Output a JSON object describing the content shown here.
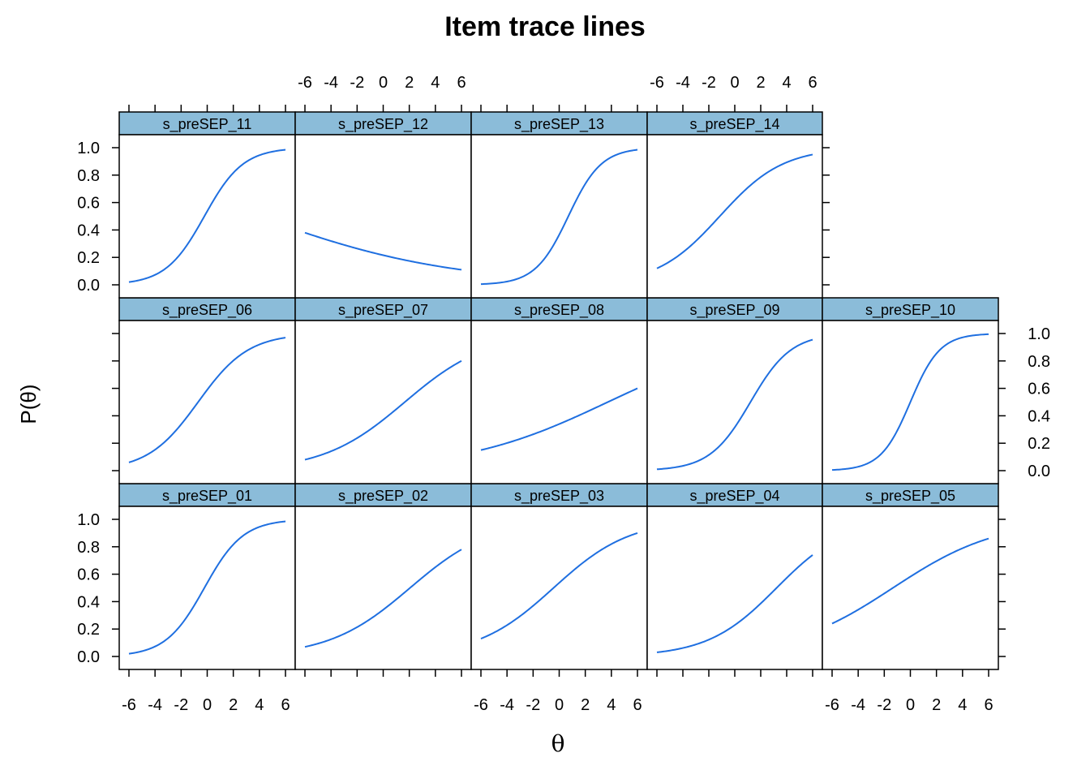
{
  "chart_data": {
    "type": "line",
    "title": "Item trace lines",
    "xlabel": "θ",
    "ylabel": "P(θ)",
    "xlim": [
      -6,
      6
    ],
    "ylim": [
      0,
      1
    ],
    "x_ticks": [
      "-6",
      "-4",
      "-2",
      "0",
      "2",
      "4",
      "6"
    ],
    "y_ticks": [
      "0.0",
      "0.2",
      "0.4",
      "0.6",
      "0.8",
      "1.0"
    ],
    "line_color": "#1f6fe0",
    "strip_color": "#8bbcd9",
    "panels": [
      {
        "name": "s_preSEP_01",
        "row": 0,
        "col": 0,
        "p_start": 0.02,
        "p_end": 0.985
      },
      {
        "name": "s_preSEP_02",
        "row": 0,
        "col": 1,
        "p_start": 0.07,
        "p_end": 0.78
      },
      {
        "name": "s_preSEP_03",
        "row": 0,
        "col": 2,
        "p_start": 0.13,
        "p_end": 0.9
      },
      {
        "name": "s_preSEP_04",
        "row": 0,
        "col": 3,
        "p_start": 0.03,
        "p_end": 0.74
      },
      {
        "name": "s_preSEP_05",
        "row": 0,
        "col": 4,
        "p_start": 0.24,
        "p_end": 0.86
      },
      {
        "name": "s_preSEP_06",
        "row": 1,
        "col": 0,
        "p_start": 0.06,
        "p_end": 0.97
      },
      {
        "name": "s_preSEP_07",
        "row": 1,
        "col": 1,
        "p_start": 0.08,
        "p_end": 0.8
      },
      {
        "name": "s_preSEP_08",
        "row": 1,
        "col": 2,
        "p_start": 0.15,
        "p_end": 0.6
      },
      {
        "name": "s_preSEP_09",
        "row": 1,
        "col": 3,
        "p_start": 0.01,
        "p_end": 0.955
      },
      {
        "name": "s_preSEP_10",
        "row": 1,
        "col": 4,
        "p_start": 0.005,
        "p_end": 0.995
      },
      {
        "name": "s_preSEP_11",
        "row": 2,
        "col": 0,
        "p_start": 0.02,
        "p_end": 0.985
      },
      {
        "name": "s_preSEP_12",
        "row": 2,
        "col": 1,
        "p_start": 0.38,
        "p_end": 0.11
      },
      {
        "name": "s_preSEP_13",
        "row": 2,
        "col": 2,
        "p_start": 0.005,
        "p_end": 0.985
      },
      {
        "name": "s_preSEP_14",
        "row": 2,
        "col": 3,
        "p_start": 0.12,
        "p_end": 0.95
      }
    ]
  }
}
